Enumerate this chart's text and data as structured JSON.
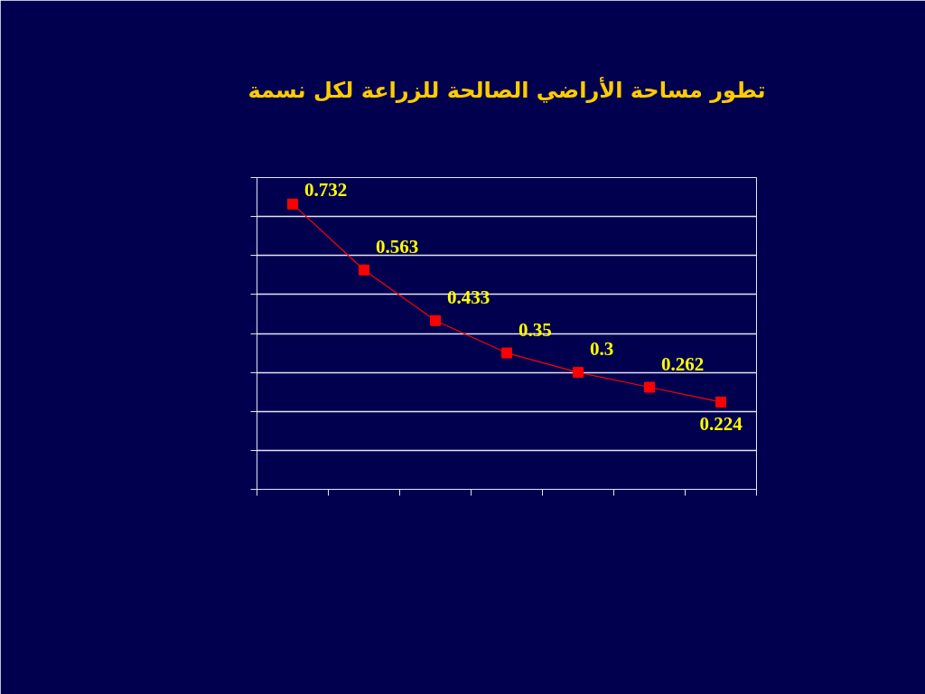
{
  "chart_data": {
    "type": "line",
    "title": "تطور مساحة الأراضي الصالحة للزراعة لكل نسمة",
    "categories": [
      null,
      null,
      null,
      null,
      null,
      null,
      null
    ],
    "series": [
      {
        "color": "#ff0000",
        "values": [
          0.732,
          0.563,
          0.433,
          0.35,
          0.3,
          0.262,
          0.224
        ]
      }
    ],
    "ylim": [
      0,
      0.8
    ],
    "yticks": [
      {
        "value": 0,
        "label": null
      },
      {
        "value": 0.1,
        "label": null
      },
      {
        "value": 0.2,
        "label": null
      },
      {
        "value": 0.3,
        "label": null
      },
      {
        "value": 0.4,
        "label": null
      },
      {
        "value": 0.5,
        "label": null
      },
      {
        "value": 0.6,
        "label": null
      },
      {
        "value": 0.7,
        "label": null
      },
      {
        "value": 0.8,
        "label": null
      }
    ],
    "grid": "y",
    "marker": "square",
    "line_style": "solid",
    "data_labels": true
  }
}
